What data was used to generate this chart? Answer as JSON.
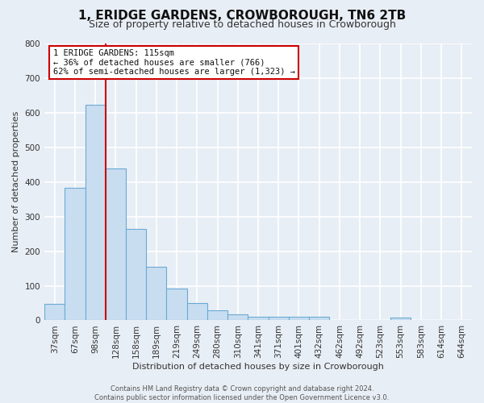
{
  "title": "1, ERIDGE GARDENS, CROWBOROUGH, TN6 2TB",
  "subtitle": "Size of property relative to detached houses in Crowborough",
  "xlabel": "Distribution of detached houses by size in Crowborough",
  "ylabel": "Number of detached properties",
  "categories": [
    "37sqm",
    "67sqm",
    "98sqm",
    "128sqm",
    "158sqm",
    "189sqm",
    "219sqm",
    "249sqm",
    "280sqm",
    "310sqm",
    "341sqm",
    "371sqm",
    "401sqm",
    "432sqm",
    "462sqm",
    "492sqm",
    "523sqm",
    "553sqm",
    "583sqm",
    "614sqm",
    "644sqm"
  ],
  "values": [
    47,
    383,
    623,
    440,
    265,
    155,
    93,
    50,
    30,
    18,
    10,
    10,
    10,
    10,
    0,
    0,
    0,
    7,
    0,
    0,
    0
  ],
  "bar_color": "#c8ddf0",
  "bar_edge_color": "#6aaad4",
  "property_line_color": "#cc0000",
  "property_line_index": 2,
  "annotation_box": {
    "text_line1": "1 ERIDGE GARDENS: 115sqm",
    "text_line2": "← 36% of detached houses are smaller (766)",
    "text_line3": "62% of semi-detached houses are larger (1,323) →",
    "box_color": "#ffffff",
    "box_edge_color": "#cc0000"
  },
  "footer_line1": "Contains HM Land Registry data © Crown copyright and database right 2024.",
  "footer_line2": "Contains public sector information licensed under the Open Government Licence v3.0.",
  "background_color": "#e8eef5",
  "plot_bg_color": "#e8eef5",
  "ylim": [
    0,
    800
  ],
  "yticks": [
    0,
    100,
    200,
    300,
    400,
    500,
    600,
    700,
    800
  ],
  "title_fontsize": 11,
  "subtitle_fontsize": 9,
  "axis_fontsize": 8,
  "tick_fontsize": 7.5,
  "footer_fontsize": 6
}
